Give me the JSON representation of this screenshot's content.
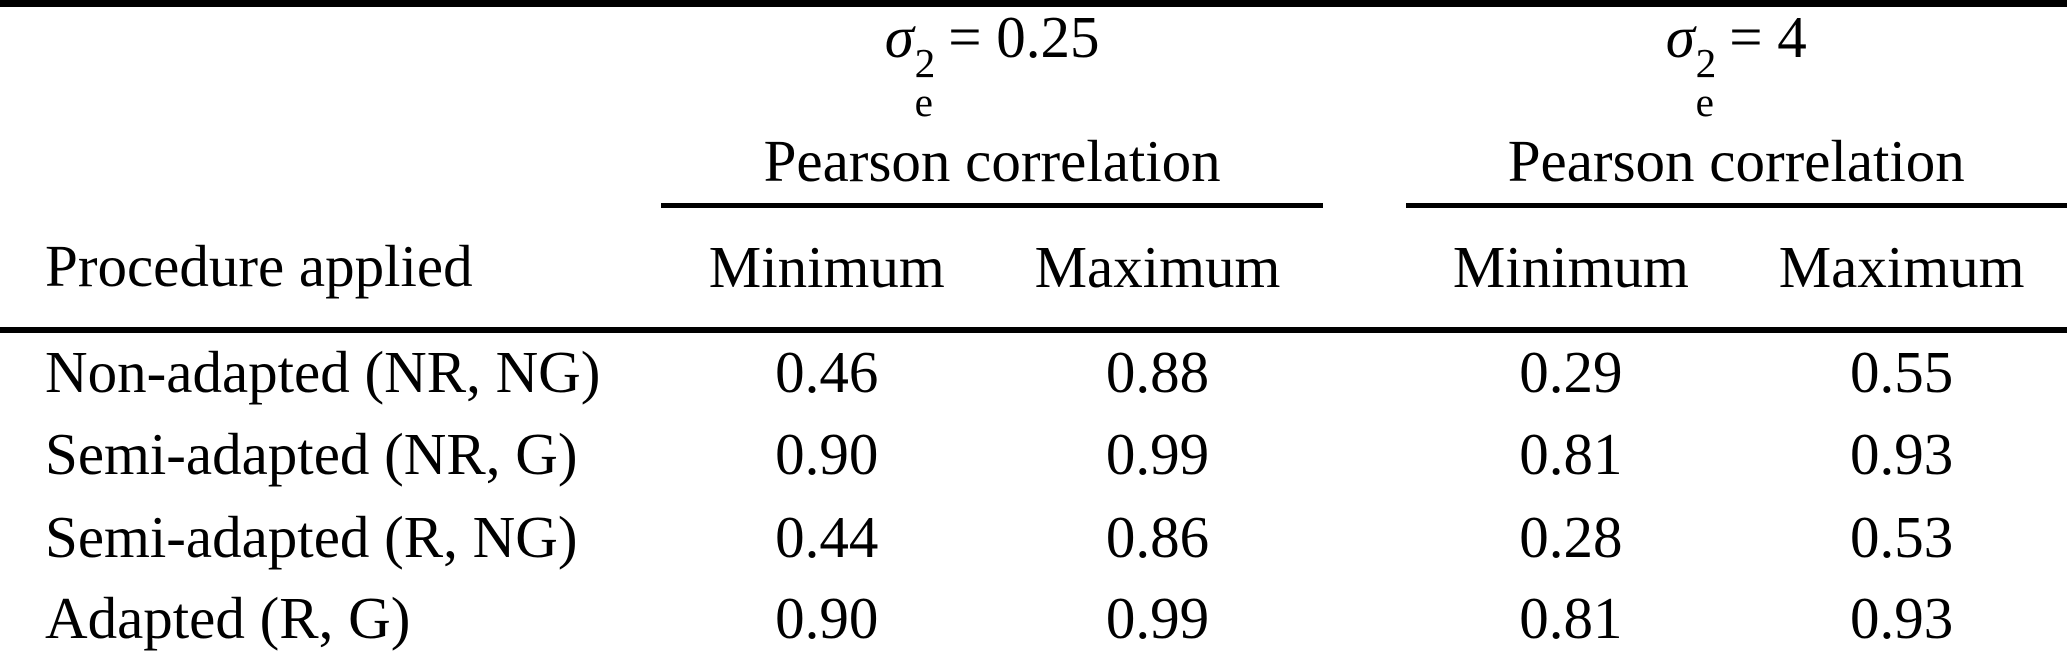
{
  "table": {
    "groups": [
      {
        "sigma": "σ",
        "sup": "2",
        "sub": "e",
        "eq": "= 0.25",
        "subtitle": "Pearson correlation"
      },
      {
        "sigma": "σ",
        "sup": "2",
        "sub": "e",
        "eq": "= 4",
        "subtitle": "Pearson correlation"
      }
    ],
    "row_header": "Procedure applied",
    "col_headers": [
      "Minimum",
      "Maximum",
      "Minimum",
      "Maximum"
    ],
    "rows": [
      {
        "label": "Non-adapted (NR, NG)",
        "values": [
          "0.46",
          "0.88",
          "0.29",
          "0.55"
        ]
      },
      {
        "label": "Semi-adapted (NR, G)",
        "values": [
          "0.90",
          "0.99",
          "0.81",
          "0.93"
        ]
      },
      {
        "label": "Semi-adapted (R, NG)",
        "values": [
          "0.44",
          "0.86",
          "0.28",
          "0.53"
        ]
      },
      {
        "label": "Adapted (R, G)",
        "values": [
          "0.90",
          "0.99",
          "0.81",
          "0.93"
        ]
      }
    ]
  },
  "chart_data": {
    "type": "table",
    "column_groups": [
      "σ_e^2 = 0.25 Pearson correlation",
      "σ_e^2 = 4 Pearson correlation"
    ],
    "columns": [
      "Procedure applied",
      "Minimum",
      "Maximum",
      "Minimum",
      "Maximum"
    ],
    "rows": [
      [
        "Non-adapted (NR, NG)",
        0.46,
        0.88,
        0.29,
        0.55
      ],
      [
        "Semi-adapted (NR, G)",
        0.9,
        0.99,
        0.81,
        0.93
      ],
      [
        "Semi-adapted (R, NG)",
        0.44,
        0.86,
        0.28,
        0.53
      ],
      [
        "Adapted (R, G)",
        0.9,
        0.99,
        0.81,
        0.93
      ]
    ]
  },
  "colors": {
    "text": "#000000",
    "background": "#ffffff",
    "rule": "#000000"
  }
}
